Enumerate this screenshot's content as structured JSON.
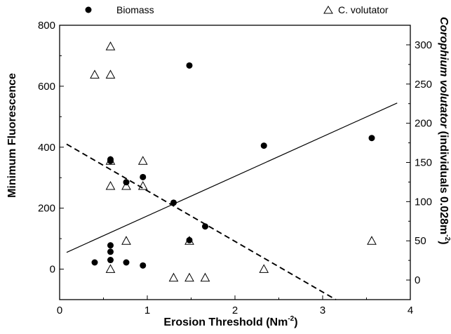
{
  "chart_data": {
    "type": "scatter",
    "xlabel": "Erosion Threshold (Nm",
    "xlabel_sup": "-2",
    "xlabel_tail": ")",
    "ylabel": "Minimum Fluorescence",
    "y2label_italic": "Corophium volutator",
    "y2label_rest": " (individuals 0.028m",
    "y2label_sup": "-2",
    "y2label_tail": ")",
    "xlim": [
      0,
      4
    ],
    "ylim": [
      -100,
      800
    ],
    "y2lim": [
      -25,
      325
    ],
    "xticks": [
      0,
      1,
      2,
      3,
      4
    ],
    "yticks": [
      0,
      200,
      400,
      600,
      800
    ],
    "y2ticks": [
      0,
      50,
      100,
      150,
      200,
      250,
      300
    ],
    "legend_placement": "top",
    "series": [
      {
        "name": "Biomass",
        "marker": "filled-circle",
        "axis": "left",
        "x": [
          0.4,
          0.58,
          0.58,
          0.58,
          0.58,
          0.58,
          0.76,
          0.76,
          0.95,
          0.95,
          1.3,
          1.48,
          1.48,
          1.66,
          2.33,
          3.56
        ],
        "y": [
          22,
          30,
          57,
          78,
          360,
          355,
          22,
          285,
          12,
          302,
          218,
          668,
          95,
          140,
          405,
          430
        ]
      },
      {
        "name": "C. volutator",
        "marker": "open-triangle",
        "axis": "right",
        "x": [
          0.4,
          0.58,
          0.58,
          0.58,
          0.58,
          0.58,
          0.76,
          0.76,
          0.95,
          0.95,
          1.3,
          1.48,
          1.48,
          1.66,
          2.33,
          3.56
        ],
        "y": [
          262,
          298,
          262,
          152,
          120,
          14,
          50,
          120,
          152,
          120,
          3,
          3,
          50,
          3,
          14,
          50
        ]
      }
    ],
    "fit_lines": [
      {
        "series": "Biomass",
        "style": "solid",
        "x": [
          0.08,
          3.85
        ],
        "y": [
          55,
          545
        ]
      },
      {
        "series": "C. volutator",
        "style": "dashed",
        "x": [
          0.08,
          3.15
        ],
        "y": [
          410,
          -100
        ]
      }
    ]
  }
}
